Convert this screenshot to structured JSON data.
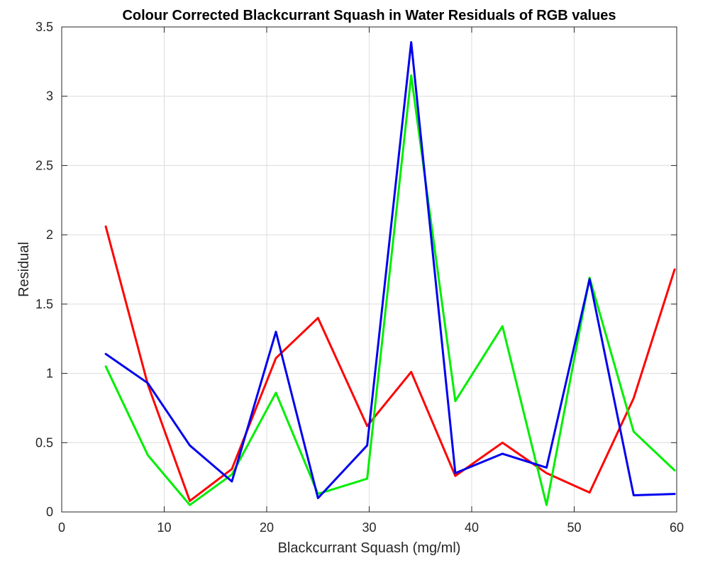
{
  "chart_data": {
    "type": "line",
    "title": "Colour Corrected Blackcurrant Squash in Water Residuals of RGB values",
    "xlabel": "Blackcurrant Squash (mg/ml)",
    "ylabel": "Residual",
    "xlim": [
      0,
      60
    ],
    "ylim": [
      0,
      3.5
    ],
    "xticks": [
      0,
      10,
      20,
      30,
      40,
      50,
      60
    ],
    "yticks": [
      0,
      0.5,
      1,
      1.5,
      2,
      2.5,
      3,
      3.5
    ],
    "xtick_labels": [
      "0",
      "10",
      "20",
      "30",
      "40",
      "50",
      "60"
    ],
    "ytick_labels": [
      "0",
      "0.5",
      "1",
      "1.5",
      "2",
      "2.5",
      "3",
      "3.5"
    ],
    "grid": true,
    "x": [
      4.3,
      8.4,
      12.5,
      16.6,
      20.9,
      25.0,
      29.8,
      34.1,
      38.4,
      43.0,
      47.3,
      51.5,
      55.8,
      59.8
    ],
    "series": [
      {
        "color": "#ff0000",
        "values": [
          2.06,
          0.92,
          0.08,
          0.31,
          1.11,
          1.4,
          0.62,
          1.01,
          0.26,
          0.5,
          0.28,
          0.14,
          0.82,
          1.75
        ]
      },
      {
        "color": "#00ee00",
        "values": [
          1.05,
          0.41,
          0.05,
          0.27,
          0.86,
          0.13,
          0.24,
          3.15,
          0.8,
          1.34,
          0.05,
          1.69,
          0.58,
          0.3
        ]
      },
      {
        "color": "#0000ee",
        "values": [
          1.14,
          0.93,
          0.48,
          0.22,
          1.3,
          0.1,
          0.48,
          3.39,
          0.28,
          0.42,
          0.32,
          1.68,
          0.12,
          0.13
        ]
      }
    ]
  }
}
